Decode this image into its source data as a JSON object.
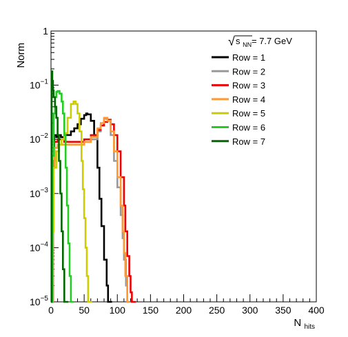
{
  "chart_data": {
    "type": "line",
    "title": "",
    "xlabel": "N",
    "xlabel_sub": "hits",
    "ylabel": "Norm",
    "xlim": [
      0,
      400
    ],
    "ylim": [
      1e-05,
      1
    ],
    "yscale": "log",
    "grid": false,
    "legend_placement": "top-right",
    "annotation": {
      "sqrt_symbol": "√",
      "var": "s",
      "sub": "NN",
      "rest": " = 7.7 GeV"
    },
    "x_ticks": [
      0,
      50,
      100,
      150,
      200,
      250,
      300,
      350,
      400
    ],
    "x_tick_labels": [
      "0",
      "50",
      "100",
      "150",
      "200",
      "250",
      "300",
      "350",
      "400"
    ],
    "y_ticks": [
      {
        "value": 1,
        "base": "1",
        "exp": ""
      },
      {
        "value": 0.1,
        "base": "10",
        "exp": "−1"
      },
      {
        "value": 0.01,
        "base": "10",
        "exp": "−2"
      },
      {
        "value": 0.001,
        "base": "10",
        "exp": "−3"
      },
      {
        "value": 0.0001,
        "base": "10",
        "exp": "−4"
      },
      {
        "value": 1e-05,
        "base": "10",
        "exp": "−5"
      }
    ],
    "series": [
      {
        "name": "Row = 1",
        "color": "#000000",
        "x": [
          0,
          3,
          5,
          8,
          10,
          15,
          20,
          25,
          30,
          35,
          40,
          45,
          50,
          53,
          55,
          60,
          65,
          70,
          73,
          76,
          80,
          84,
          86,
          88,
          90,
          92
        ],
        "y": [
          1e-05,
          0.004,
          0.012,
          0.011,
          0.012,
          0.011,
          0.012,
          0.012,
          0.014,
          0.016,
          0.019,
          0.024,
          0.028,
          0.03,
          0.029,
          0.022,
          0.012,
          0.003,
          0.0008,
          0.00025,
          6e-05,
          2e-05,
          1e-05,
          1e-05,
          1e-05,
          1e-05
        ]
      },
      {
        "name": "Row = 2",
        "color": "#999999",
        "x": [
          0,
          3,
          5,
          10,
          20,
          30,
          40,
          50,
          60,
          70,
          75,
          80,
          85,
          90,
          95,
          100,
          105,
          108,
          110,
          113,
          115,
          117,
          119,
          120
        ],
        "y": [
          1e-05,
          0.003,
          0.007,
          0.008,
          0.008,
          0.008,
          0.008,
          0.009,
          0.01,
          0.014,
          0.018,
          0.024,
          0.022,
          0.012,
          0.004,
          0.0013,
          0.0004,
          0.00015,
          6e-05,
          2e-05,
          1e-05,
          1e-05,
          1e-05,
          1e-05
        ]
      },
      {
        "name": "Row = 3",
        "color": "#ee0000",
        "x": [
          0,
          3,
          5,
          10,
          20,
          30,
          40,
          50,
          60,
          70,
          75,
          80,
          85,
          90,
          95,
          100,
          105,
          110,
          112,
          115,
          118,
          120,
          122,
          125,
          128
        ],
        "y": [
          1e-05,
          0.004,
          0.009,
          0.01,
          0.009,
          0.009,
          0.009,
          0.01,
          0.012,
          0.015,
          0.018,
          0.021,
          0.023,
          0.019,
          0.012,
          0.006,
          0.002,
          0.0006,
          0.0002,
          7e-05,
          3e-05,
          1.5e-05,
          1e-05,
          1e-05,
          1e-05
        ]
      },
      {
        "name": "Row = 4",
        "color": "#ff9933",
        "x": [
          0,
          3,
          5,
          10,
          20,
          30,
          40,
          50,
          60,
          70,
          75,
          80,
          85,
          90,
          95,
          100,
          105,
          108,
          110,
          112,
          115,
          117,
          118
        ],
        "y": [
          1e-05,
          0.003,
          0.007,
          0.008,
          0.008,
          0.008,
          0.008,
          0.009,
          0.011,
          0.016,
          0.02,
          0.025,
          0.022,
          0.014,
          0.006,
          0.002,
          0.0006,
          0.0002,
          8e-05,
          3e-05,
          1e-05,
          1e-05,
          1e-05
        ]
      },
      {
        "name": "Row = 5",
        "color": "#cccc00",
        "x": [
          0,
          2,
          4,
          8,
          12,
          16,
          20,
          25,
          30,
          34,
          37,
          40,
          43,
          46,
          48,
          50,
          52,
          54,
          56,
          58,
          60,
          62
        ],
        "y": [
          1e-05,
          0.0002,
          0.003,
          0.006,
          0.008,
          0.01,
          0.013,
          0.025,
          0.045,
          0.05,
          0.045,
          0.03,
          0.014,
          0.004,
          0.0012,
          0.00035,
          0.0001,
          3e-05,
          1e-05,
          1e-05,
          1e-05,
          1e-05
        ]
      },
      {
        "name": "Row = 6",
        "color": "#22cc22",
        "x": [
          0,
          2,
          4,
          6,
          8,
          10,
          13,
          16,
          18,
          20,
          22,
          24,
          26,
          28,
          30,
          32,
          34
        ],
        "y": [
          1e-05,
          0.005,
          0.03,
          0.06,
          0.075,
          0.078,
          0.07,
          0.05,
          0.03,
          0.012,
          0.003,
          0.0006,
          0.00012,
          3e-05,
          1e-05,
          1e-05,
          1e-05
        ]
      },
      {
        "name": "Row = 7",
        "color": "#006600",
        "x": [
          0,
          1,
          2,
          3,
          4,
          6,
          8,
          10,
          12,
          14,
          16,
          18,
          20,
          22,
          24,
          26
        ],
        "y": [
          1e-05,
          0.18,
          0.12,
          0.08,
          0.06,
          0.04,
          0.025,
          0.012,
          0.004,
          0.001,
          0.0002,
          4e-05,
          1e-05,
          1e-05,
          1e-05,
          1e-05
        ]
      }
    ]
  }
}
